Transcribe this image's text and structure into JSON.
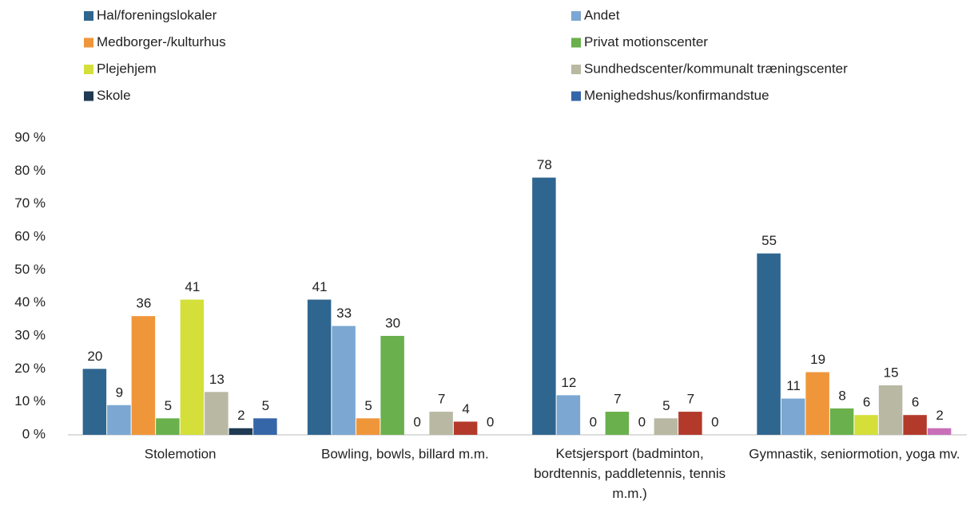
{
  "chart_data": {
    "type": "bar",
    "categories": [
      "Stolemotion",
      "Bowling, bowls, billard m.m.",
      "Ketsjersport (badminton, bordtennis, paddletennis, tennis m.m.)",
      "Gymnastik, seniormotion, yoga mv."
    ],
    "series": [
      {
        "name": "Hal/foreningslokaler",
        "colors": [
          "#2f6690",
          "#2f6690",
          "#2f6690",
          "#2f6690"
        ],
        "values": [
          20,
          41,
          78,
          55
        ]
      },
      {
        "name": "Andet",
        "colors": [
          "#7ba7d2",
          "#7ba7d2",
          "#7ba7d2",
          "#7ba7d2"
        ],
        "values": [
          9,
          33,
          12,
          11
        ]
      },
      {
        "name": "Medborger-/kulturhus",
        "colors": [
          "#f0963a",
          "#f0963a",
          "#f0963a",
          "#f0963a"
        ],
        "values": [
          36,
          5,
          0,
          19
        ]
      },
      {
        "name": "Privat motionscenter",
        "colors": [
          "#6ab04c",
          "#6ab04c",
          "#6ab04c",
          "#6ab04c"
        ],
        "values": [
          5,
          30,
          7,
          8
        ]
      },
      {
        "name": "Plejehjem",
        "colors": [
          "#d4df3a",
          "#d4df3a",
          "#d4df3a",
          "#d4df3a"
        ],
        "values": [
          41,
          0,
          0,
          6
        ]
      },
      {
        "name": "Sundhedscenter/kommunalt træningscenter",
        "colors": [
          "#b9b9a3",
          "#b9b9a3",
          "#b9b9a3",
          "#b9b9a3"
        ],
        "values": [
          13,
          7,
          5,
          15
        ]
      },
      {
        "name": "Skole",
        "colors": [
          "#1f3a52",
          "#b33a2b",
          "#b33a2b",
          "#b33a2b"
        ],
        "values": [
          2,
          4,
          7,
          6
        ]
      },
      {
        "name": "Menighedshus/konfirmandstue",
        "colors": [
          "#3566a8",
          "#c86fb8",
          "#c86fb8",
          "#c86fb8"
        ],
        "values": [
          5,
          0,
          0,
          2
        ]
      }
    ],
    "ylim": [
      0,
      90
    ],
    "yticks": [
      {
        "value": 0,
        "label": "0 %"
      },
      {
        "value": 10,
        "label": "10 %"
      },
      {
        "value": 20,
        "label": "20 %"
      },
      {
        "value": 30,
        "label": "30 %"
      },
      {
        "value": 40,
        "label": "40 %"
      },
      {
        "value": 50,
        "label": "50 %"
      },
      {
        "value": 60,
        "label": "60 %"
      },
      {
        "value": 70,
        "label": "70 %"
      },
      {
        "value": 80,
        "label": "80 %"
      },
      {
        "value": 90,
        "label": "90 %"
      }
    ],
    "grid": false,
    "legend": "top"
  }
}
